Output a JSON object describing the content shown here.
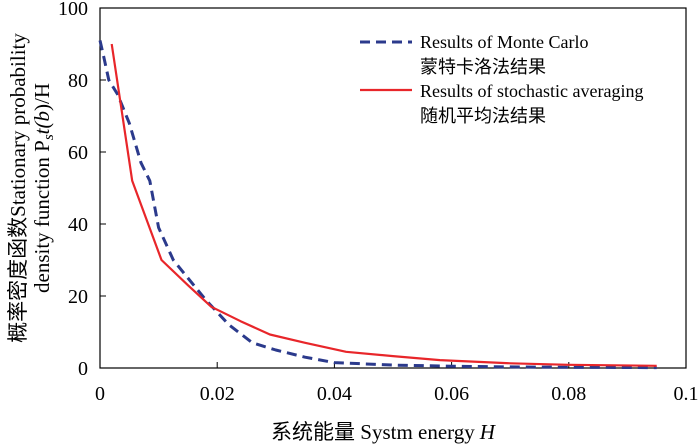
{
  "chart_data": {
    "type": "line",
    "title": "",
    "xlabel_cn": "系统能量 Systm energy",
    "xlabel_var": "H",
    "ylabel_line1": "概率密度函数Stationary probability",
    "ylabel_line2_pre": "density function P",
    "ylabel_sub": "s",
    "ylabel_line2_paren_open": "t(",
    "ylabel_var": "b",
    "ylabel_line2_post": ")/H",
    "xlim": [
      0,
      0.1
    ],
    "ylim": [
      0,
      100
    ],
    "xticks": [
      0,
      0.02,
      0.04,
      0.06,
      0.08,
      0.1
    ],
    "xtick_labels": [
      "0",
      "0.02",
      "0.04",
      "0.06",
      "0.08",
      "0.1"
    ],
    "yticks": [
      0,
      20,
      40,
      60,
      80,
      100
    ],
    "ytick_labels": [
      "0",
      "20",
      "40",
      "60",
      "80",
      "100"
    ],
    "legend_position": "top-right",
    "series": [
      {
        "name": "Results of Monte Carlo",
        "name_cn": "蒙特卡洛法结果",
        "color": "#2b3a8c",
        "style": "dashed",
        "x": [
          0.0,
          0.0007,
          0.0015,
          0.003,
          0.005,
          0.007,
          0.0085,
          0.01,
          0.0125,
          0.015,
          0.018,
          0.022,
          0.026,
          0.03,
          0.035,
          0.04,
          0.05,
          0.06,
          0.07,
          0.08,
          0.095
        ],
        "y": [
          91,
          86,
          80,
          76,
          68,
          57,
          52,
          39,
          30,
          25,
          19,
          12,
          7,
          5,
          3,
          1.5,
          0.8,
          0.5,
          0.3,
          0.2,
          0.1
        ]
      },
      {
        "name": "Results of stochastic averaging",
        "name_cn": "随机平均法结果",
        "color": "#e8262a",
        "style": "solid",
        "x": [
          0.002,
          0.0055,
          0.0105,
          0.015,
          0.019,
          0.024,
          0.029,
          0.035,
          0.042,
          0.05,
          0.058,
          0.07,
          0.08,
          0.095
        ],
        "y": [
          90,
          52,
          30,
          23,
          17,
          13,
          9.3,
          7,
          4.5,
          3.3,
          2.2,
          1.3,
          0.9,
          0.6
        ]
      }
    ]
  }
}
